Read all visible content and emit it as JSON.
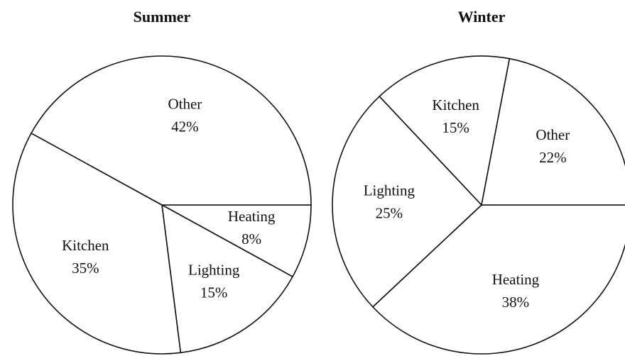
{
  "chart_data": [
    {
      "type": "pie",
      "title": "Summer",
      "color": "#ffffff",
      "categories": [
        "Heating",
        "Lighting",
        "Kitchen",
        "Other"
      ],
      "values": [
        8,
        15,
        35,
        42
      ],
      "value_labels": [
        "8%",
        "15%",
        "35%",
        "42%"
      ]
    },
    {
      "type": "pie",
      "title": "Winter",
      "color": "#ffffff",
      "categories": [
        "Heating",
        "Lighting",
        "Kitchen",
        "Other"
      ],
      "values": [
        38,
        25,
        15,
        22
      ],
      "value_labels": [
        "38%",
        "25%",
        "15%",
        "22%"
      ]
    }
  ]
}
